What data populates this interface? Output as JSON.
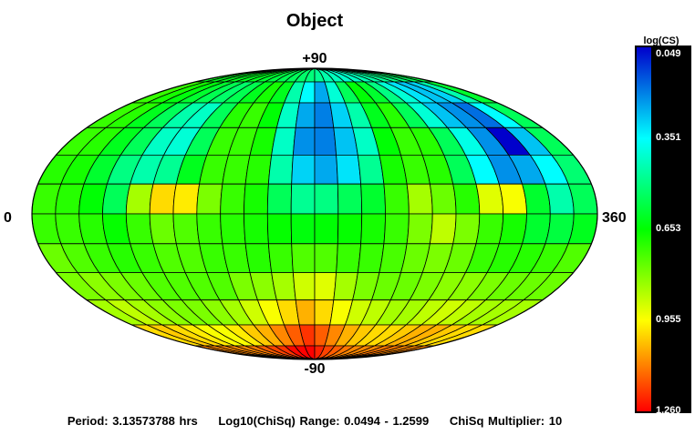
{
  "chart_data": {
    "type": "heatmap",
    "projection": "mollweide",
    "title": "Object",
    "lat_labels": {
      "top": "+90",
      "bottom": "-90"
    },
    "lon_labels": {
      "left": "0",
      "right": "360"
    },
    "lon_range": [
      0,
      360
    ],
    "lat_range": [
      -90,
      90
    ],
    "lon_step": 15,
    "lat_step": 15,
    "grid": true,
    "colorbar": {
      "label": "log(CS)",
      "placement": "right",
      "min": 0.049,
      "max": 1.26,
      "ticks": [
        "0.049",
        "0.351",
        "0.653",
        "0.955",
        "1.260"
      ],
      "colors": [
        "#0000cc",
        "#00ffff",
        "#00ff00",
        "#ffff00",
        "#ff0000"
      ]
    },
    "row_latitudes": [
      "75 to 90",
      "60 to 75",
      "45 to 60",
      "30 to 45",
      "15 to 30",
      "0 to 15",
      "-15 to 0",
      "-30 to -15",
      "-45 to -30",
      "-60 to -45",
      "-75 to -60",
      "-90 to -75"
    ],
    "values": [
      [
        0.62,
        0.62,
        0.62,
        0.62,
        0.62,
        0.62,
        0.6,
        0.58,
        0.56,
        0.55,
        0.53,
        0.51,
        0.48,
        0.45,
        0.43,
        0.41,
        0.42,
        0.44,
        0.46,
        0.48,
        0.5,
        0.52,
        0.55,
        0.58
      ],
      [
        0.72,
        0.68,
        0.64,
        0.6,
        0.56,
        0.53,
        0.56,
        0.62,
        0.68,
        0.62,
        0.45,
        0.35,
        0.25,
        0.4,
        0.55,
        0.65,
        0.6,
        0.5,
        0.4,
        0.32,
        0.28,
        0.3,
        0.45,
        0.6
      ],
      [
        0.72,
        0.7,
        0.62,
        0.55,
        0.45,
        0.42,
        0.55,
        0.7,
        0.72,
        0.65,
        0.42,
        0.25,
        0.2,
        0.3,
        0.45,
        0.62,
        0.7,
        0.55,
        0.4,
        0.28,
        0.22,
        0.18,
        0.35,
        0.55
      ],
      [
        0.72,
        0.7,
        0.62,
        0.55,
        0.42,
        0.4,
        0.55,
        0.72,
        0.72,
        0.68,
        0.42,
        0.22,
        0.2,
        0.28,
        0.42,
        0.65,
        0.72,
        0.7,
        0.55,
        0.38,
        0.22,
        0.049,
        0.28,
        0.55
      ],
      [
        0.7,
        0.68,
        0.6,
        0.5,
        0.45,
        0.48,
        0.62,
        0.72,
        0.72,
        0.7,
        0.45,
        0.3,
        0.25,
        0.32,
        0.48,
        0.68,
        0.72,
        0.7,
        0.55,
        0.35,
        0.22,
        0.25,
        0.35,
        0.52
      ],
      [
        0.72,
        0.7,
        0.65,
        0.55,
        0.85,
        1.0,
        0.98,
        0.8,
        0.72,
        0.68,
        0.55,
        0.48,
        0.5,
        0.55,
        0.6,
        0.72,
        0.85,
        0.78,
        0.7,
        0.92,
        0.95,
        0.6,
        0.45,
        0.55
      ],
      [
        0.72,
        0.72,
        0.7,
        0.66,
        0.72,
        0.78,
        0.75,
        0.72,
        0.7,
        0.68,
        0.66,
        0.64,
        0.65,
        0.66,
        0.68,
        0.72,
        0.8,
        0.88,
        0.8,
        0.72,
        0.68,
        0.6,
        0.58,
        0.62
      ],
      [
        0.78,
        0.75,
        0.72,
        0.7,
        0.72,
        0.75,
        0.75,
        0.72,
        0.72,
        0.7,
        0.72,
        0.75,
        0.75,
        0.72,
        0.72,
        0.74,
        0.78,
        0.8,
        0.78,
        0.72,
        0.7,
        0.7,
        0.72,
        0.75
      ],
      [
        0.8,
        0.82,
        0.8,
        0.78,
        0.75,
        0.75,
        0.75,
        0.75,
        0.8,
        0.82,
        0.85,
        0.9,
        0.92,
        0.85,
        0.8,
        0.78,
        0.78,
        0.8,
        0.82,
        0.82,
        0.8,
        0.78,
        0.78,
        0.78
      ],
      [
        0.85,
        0.88,
        0.85,
        0.82,
        0.8,
        0.8,
        0.82,
        0.85,
        0.9,
        0.95,
        1.0,
        1.05,
        1.0,
        0.95,
        0.9,
        0.88,
        0.85,
        0.85,
        0.88,
        0.9,
        0.88,
        0.85,
        0.85,
        0.85
      ],
      [
        1.0,
        1.02,
        1.0,
        0.98,
        0.95,
        0.95,
        0.98,
        1.02,
        1.05,
        1.1,
        1.15,
        1.2,
        1.15,
        1.1,
        1.05,
        1.02,
        1.0,
        1.0,
        1.02,
        1.05,
        1.05,
        1.02,
        1.0,
        1.0
      ],
      [
        1.1,
        1.1,
        1.1,
        1.1,
        1.1,
        1.12,
        1.15,
        1.18,
        1.2,
        1.25,
        1.26,
        1.26,
        1.22,
        1.18,
        1.15,
        1.12,
        1.1,
        1.1,
        1.1,
        1.12,
        1.12,
        1.1,
        1.1,
        1.1
      ]
    ]
  },
  "footer": {
    "period": "Period: 3.13573788 hrs",
    "range": "Log10(ChiSq) Range: 0.0494 - 1.2599",
    "multiplier": "ChiSq Multiplier: 10"
  }
}
